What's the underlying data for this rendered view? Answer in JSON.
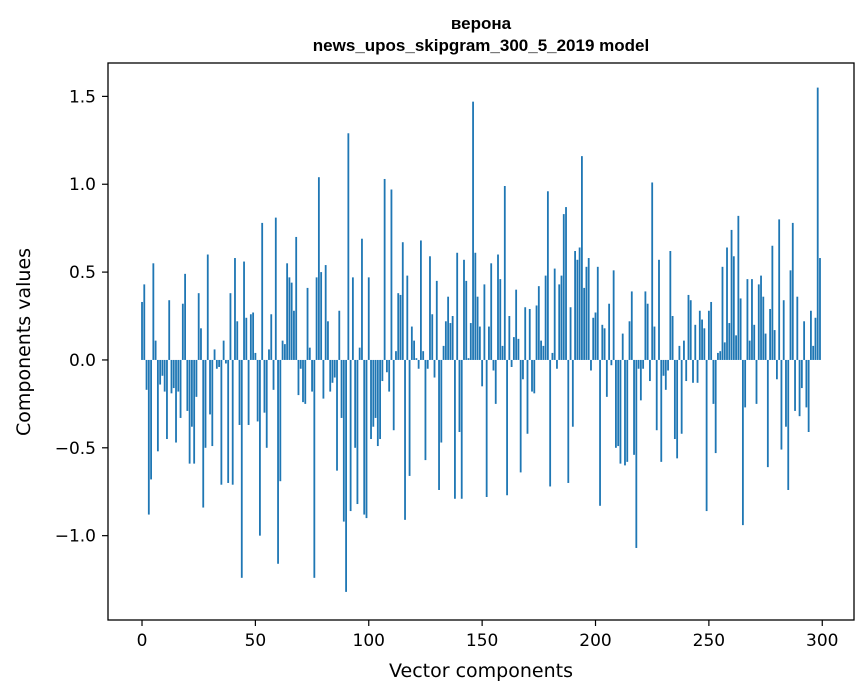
{
  "chart_data": {
    "type": "bar",
    "title_line1": "верона",
    "title_line2": "news_upos_skipgram_300_5_2019 model",
    "xlabel": "Vector components",
    "ylabel": "Components values",
    "xlim": [
      -15,
      314
    ],
    "ylim": [
      -1.48,
      1.69
    ],
    "xticks": [
      0,
      50,
      100,
      150,
      200,
      250,
      300
    ],
    "xtick_labels": [
      "0",
      "50",
      "100",
      "150",
      "200",
      "250",
      "300"
    ],
    "yticks": [
      -1.0,
      -0.5,
      0.0,
      0.5,
      1.0,
      1.5
    ],
    "ytick_labels": [
      "−1.0",
      "−0.5",
      "0.0",
      "0.5",
      "1.0",
      "1.5"
    ],
    "bar_color": "#1f77b4",
    "grid": false,
    "values": [
      0.33,
      0.43,
      -0.17,
      -0.88,
      -0.68,
      0.55,
      0.11,
      -0.52,
      -0.14,
      -0.09,
      -0.18,
      -0.45,
      0.34,
      -0.19,
      -0.16,
      -0.47,
      -0.18,
      -0.33,
      0.32,
      0.49,
      -0.29,
      -0.59,
      -0.38,
      -0.59,
      -0.21,
      0.38,
      0.18,
      -0.84,
      -0.5,
      0.6,
      -0.31,
      -0.49,
      0.06,
      -0.05,
      -0.04,
      -0.71,
      0.11,
      -0.02,
      -0.7,
      0.38,
      -0.71,
      0.58,
      0.22,
      -0.37,
      -1.24,
      0.56,
      0.24,
      -0.37,
      0.26,
      0.27,
      0.04,
      -0.35,
      -1.0,
      0.78,
      -0.3,
      -0.5,
      0.06,
      0.26,
      -0.17,
      0.81,
      -1.16,
      -0.69,
      0.11,
      0.09,
      0.55,
      0.47,
      0.44,
      0.28,
      0.7,
      -0.2,
      -0.05,
      -0.24,
      -0.25,
      0.41,
      0.07,
      -0.18,
      -1.24,
      0.47,
      1.04,
      0.5,
      -0.22,
      0.54,
      0.22,
      -0.18,
      -0.13,
      -0.1,
      -0.63,
      0.28,
      -0.33,
      -0.92,
      -1.32,
      1.29,
      -0.86,
      0.47,
      -0.5,
      -0.82,
      0.07,
      0.69,
      -0.88,
      -0.9,
      0.47,
      -0.45,
      -0.38,
      -0.33,
      -0.49,
      -0.45,
      -0.12,
      1.03,
      -0.07,
      -0.18,
      0.97,
      -0.4,
      0.05,
      0.38,
      0.37,
      0.67,
      -0.91,
      0.48,
      -0.66,
      0.19,
      0.11,
      0.01,
      -0.05,
      0.68,
      0.05,
      -0.57,
      -0.05,
      0.59,
      0.26,
      -0.1,
      0.45,
      -0.74,
      -0.47,
      0.08,
      0.22,
      0.36,
      0.21,
      0.25,
      -0.79,
      0.61,
      -0.41,
      -0.79,
      0.57,
      0.45,
      0.01,
      0.21,
      1.47,
      0.61,
      0.36,
      0.19,
      -0.15,
      0.43,
      -0.78,
      0.19,
      0.55,
      -0.06,
      -0.25,
      0.6,
      0.46,
      0.08,
      0.99,
      -0.77,
      0.25,
      -0.04,
      0.13,
      0.4,
      0.12,
      -0.64,
      -0.11,
      0.3,
      -0.42,
      0.29,
      -0.18,
      -0.19,
      0.31,
      0.42,
      0.11,
      0.08,
      0.48,
      0.96,
      -0.72,
      0.04,
      0.52,
      -0.05,
      0.43,
      0.48,
      0.83,
      0.87,
      -0.7,
      0.3,
      -0.38,
      0.62,
      0.57,
      0.64,
      1.16,
      0.41,
      0.53,
      0.58,
      -0.06,
      0.24,
      0.27,
      0.53,
      -0.83,
      0.2,
      0.18,
      -0.21,
      0.32,
      -0.03,
      0.51,
      -0.5,
      -0.49,
      -0.59,
      0.15,
      -0.6,
      -0.58,
      0.22,
      0.39,
      -0.54,
      -1.07,
      -0.05,
      -0.23,
      -0.05,
      0.39,
      0.32,
      -0.12,
      1.01,
      0.19,
      -0.4,
      0.57,
      -0.58,
      -0.09,
      -0.17,
      -0.06,
      0.62,
      0.25,
      -0.45,
      -0.56,
      0.08,
      -0.42,
      0.11,
      -0.12,
      0.37,
      0.34,
      -0.13,
      0.2,
      -0.13,
      0.28,
      0.23,
      0.18,
      -0.86,
      0.28,
      0.33,
      -0.25,
      -0.53,
      0.04,
      0.05,
      0.53,
      0.1,
      0.64,
      0.21,
      0.74,
      0.59,
      0.14,
      0.82,
      0.35,
      -0.94,
      -0.27,
      0.46,
      0.11,
      0.46,
      0.2,
      -0.25,
      0.43,
      0.48,
      0.36,
      0.15,
      -0.61,
      0.29,
      0.65,
      0.17,
      -0.11,
      0.8,
      -0.51,
      0.34,
      -0.38,
      -0.74,
      0.51,
      0.78,
      -0.29,
      0.36,
      -0.32,
      -0.16,
      0.22,
      -0.27,
      -0.41,
      0.28,
      0.08,
      0.24,
      1.55,
      0.58
    ]
  }
}
